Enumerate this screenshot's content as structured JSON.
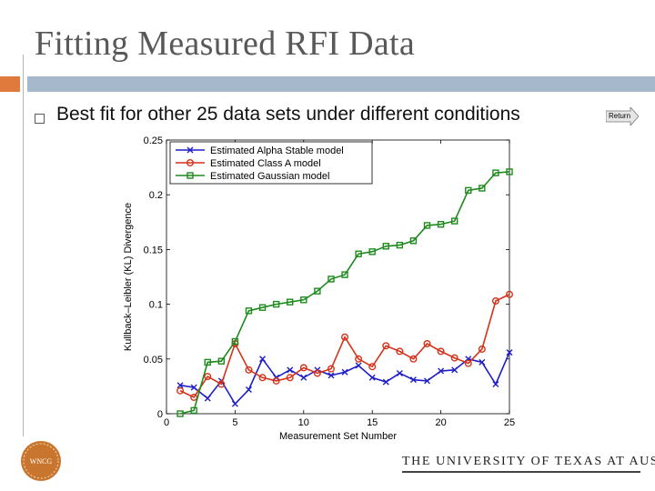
{
  "slide": {
    "title": "Fitting Measured RFI Data",
    "bullet": "Best fit for other 25 data sets under different conditions",
    "return_label": "Return",
    "logo_text": "WNCG",
    "footer": "THE UNIVERSITY OF TEXAS AT AUSTIN"
  },
  "colors": {
    "accent": "#e07a3c",
    "band": "#a6b9cc",
    "alpha": "#1f1fc9",
    "classA": "#d5321b",
    "gauss": "#1e8a1e"
  },
  "chart_data": {
    "type": "line",
    "title": "",
    "xlabel": "Measurement Set Number",
    "ylabel": "Kullback–Leibler (KL) Divergence",
    "xlim": [
      0,
      25
    ],
    "ylim": [
      0,
      0.25
    ],
    "xticks": [
      0,
      5,
      10,
      15,
      20,
      25
    ],
    "xtick_labels": [
      "0",
      "5",
      "10",
      "15",
      "20",
      "25"
    ],
    "yticks": [
      0,
      0.05,
      0.1,
      0.15,
      0.2,
      0.25
    ],
    "ytick_labels": [
      "0",
      "0.05",
      "0.1",
      "0.15",
      "0.2",
      "0.25"
    ],
    "legend_position": "top-left",
    "x": [
      1,
      2,
      3,
      4,
      5,
      6,
      7,
      8,
      9,
      10,
      11,
      12,
      13,
      14,
      15,
      16,
      17,
      18,
      19,
      20,
      21,
      22,
      23,
      24,
      25
    ],
    "series": [
      {
        "name": "Estimated Alpha Stable model",
        "marker": "x",
        "values": [
          0.026,
          0.024,
          0.014,
          0.03,
          0.009,
          0.022,
          0.05,
          0.033,
          0.04,
          0.033,
          0.04,
          0.035,
          0.038,
          0.044,
          0.033,
          0.029,
          0.037,
          0.031,
          0.03,
          0.039,
          0.04,
          0.05,
          0.047,
          0.027,
          0.056
        ]
      },
      {
        "name": "Estimated Class A model",
        "marker": "circle",
        "values": [
          0.021,
          0.015,
          0.034,
          0.027,
          0.064,
          0.04,
          0.033,
          0.03,
          0.033,
          0.042,
          0.037,
          0.041,
          0.07,
          0.05,
          0.043,
          0.062,
          0.057,
          0.05,
          0.064,
          0.057,
          0.051,
          0.046,
          0.059,
          0.103,
          0.109
        ]
      },
      {
        "name": "Estimated Gaussian model",
        "marker": "square",
        "values": [
          0.0,
          0.003,
          0.047,
          0.048,
          0.066,
          0.094,
          0.097,
          0.1,
          0.102,
          0.104,
          0.112,
          0.123,
          0.127,
          0.146,
          0.148,
          0.153,
          0.154,
          0.158,
          0.172,
          0.173,
          0.176,
          0.204,
          0.206,
          0.22,
          0.221
        ]
      }
    ]
  }
}
